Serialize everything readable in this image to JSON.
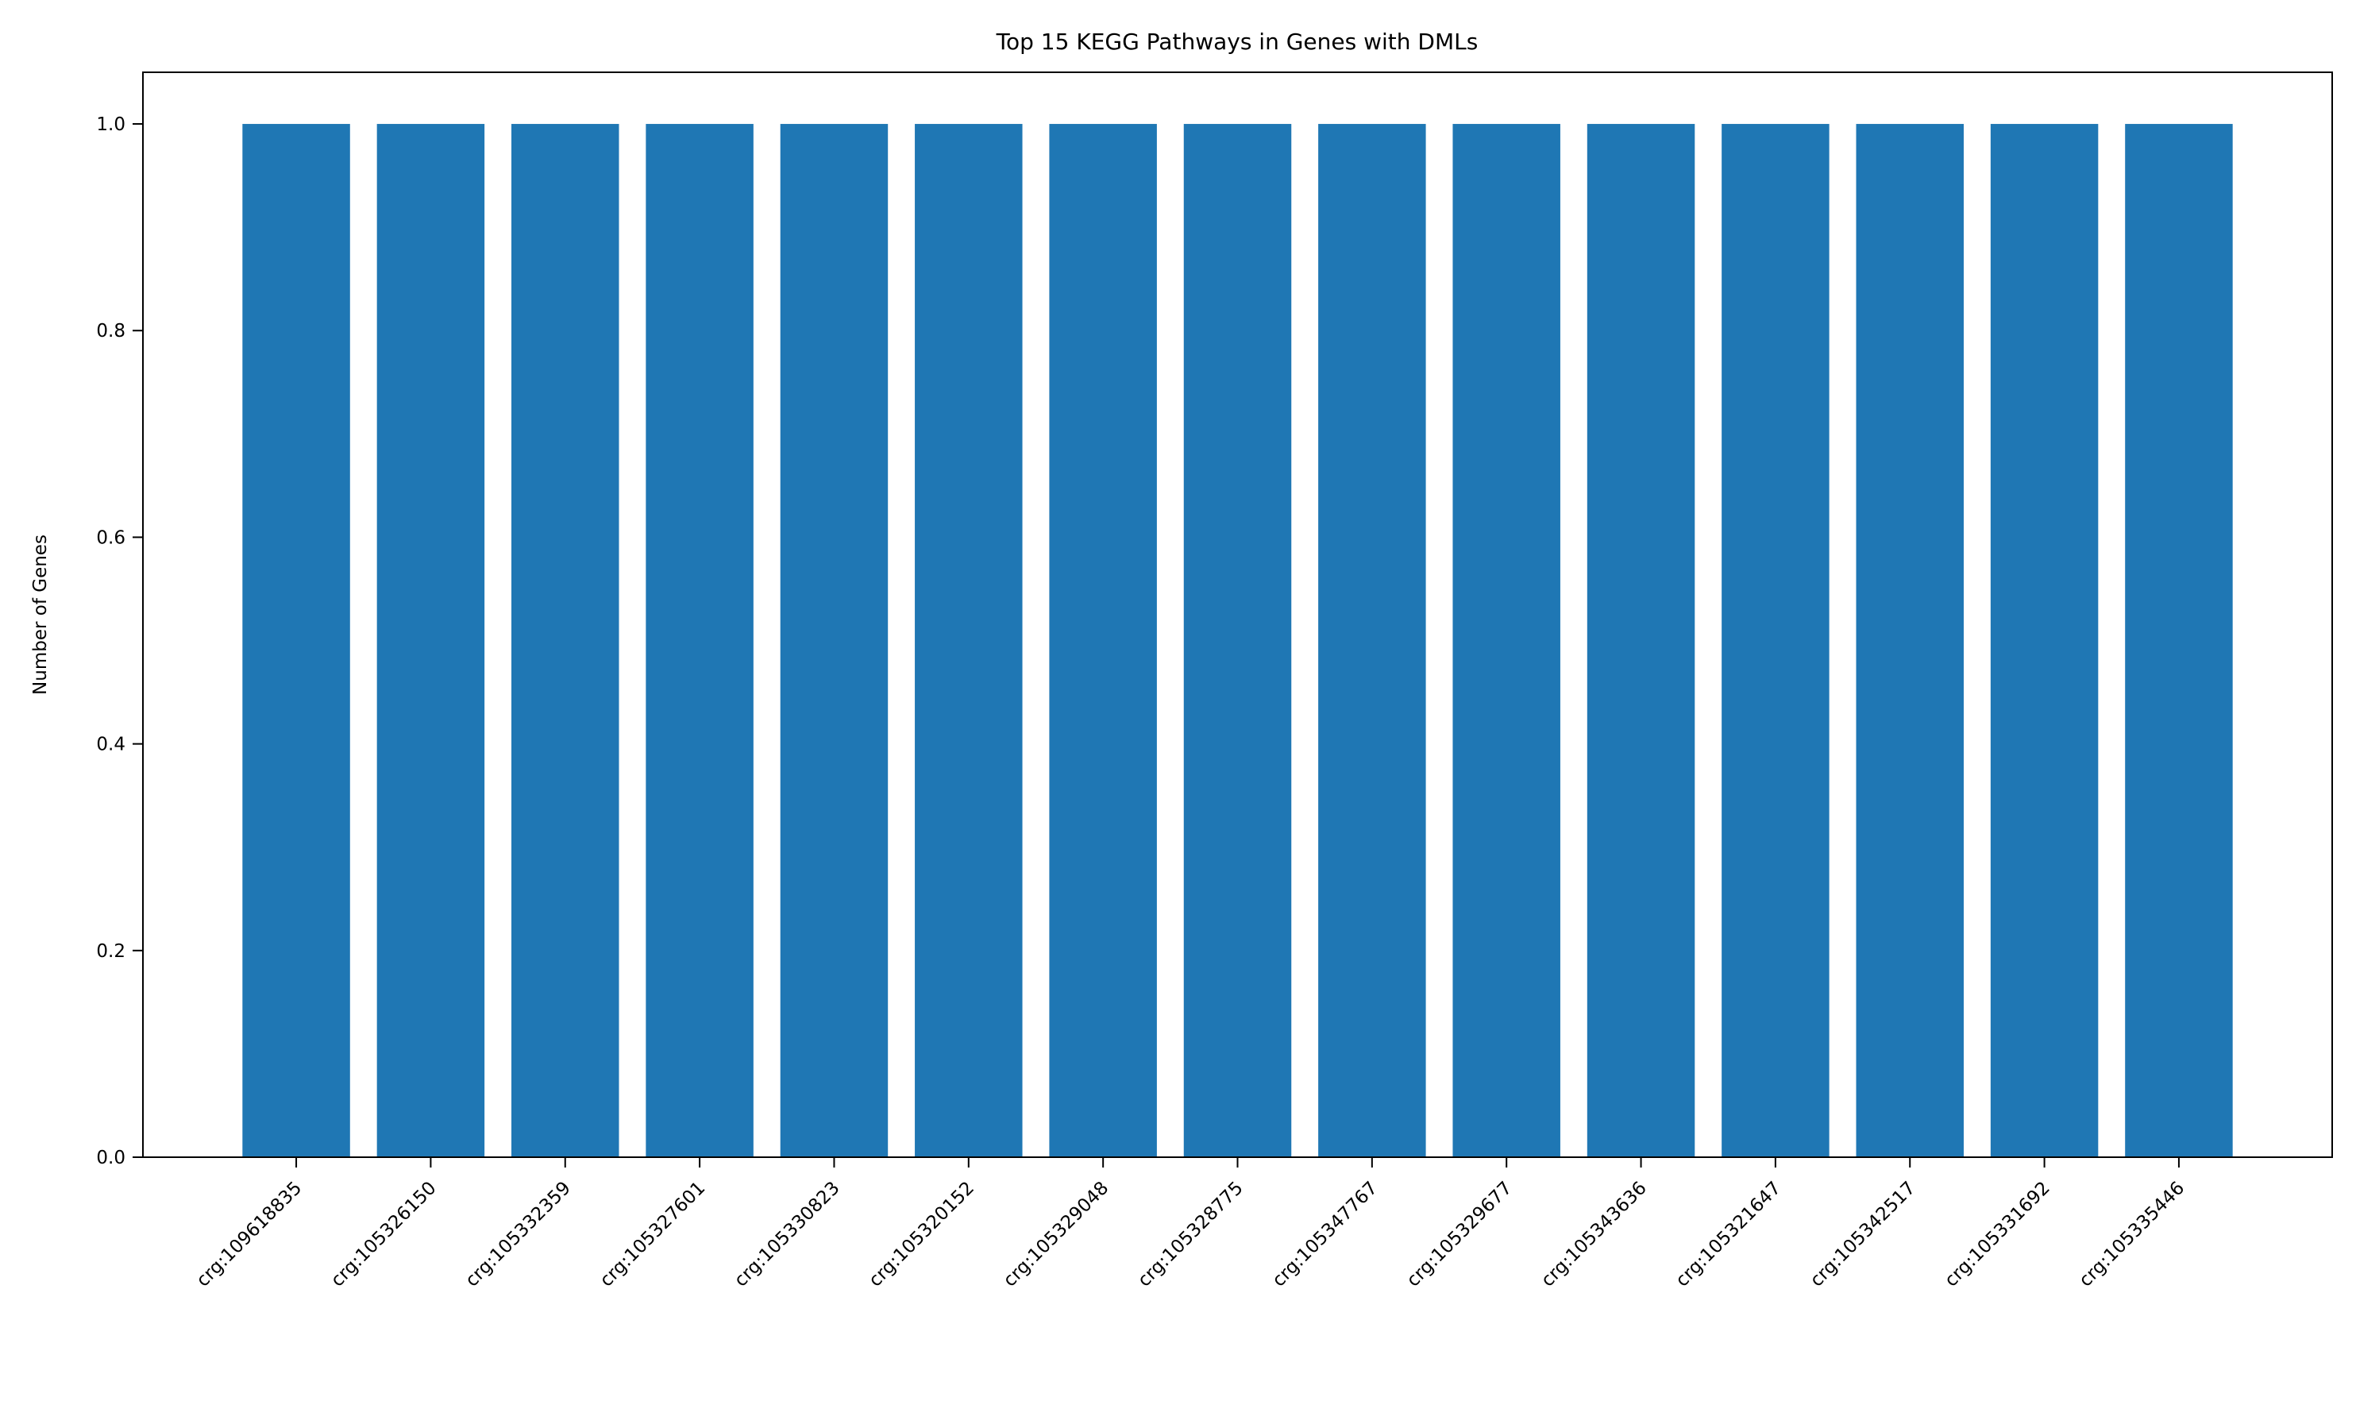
{
  "chart_data": {
    "type": "bar",
    "title": "Top 15 KEGG Pathways in Genes with DMLs",
    "xlabel": "",
    "ylabel": "Number of Genes",
    "categories": [
      "crg:109618835",
      "crg:105326150",
      "crg:105332359",
      "crg:105327601",
      "crg:105330823",
      "crg:105320152",
      "crg:105329048",
      "crg:105328775",
      "crg:105347767",
      "crg:105329677",
      "crg:105343636",
      "crg:105321647",
      "crg:105342517",
      "crg:105331692",
      "crg:105335446"
    ],
    "values": [
      1,
      1,
      1,
      1,
      1,
      1,
      1,
      1,
      1,
      1,
      1,
      1,
      1,
      1,
      1
    ],
    "ylim": [
      0,
      1.05
    ],
    "yticks": [
      "0.0",
      "0.2",
      "0.4",
      "0.6",
      "0.8",
      "1.0"
    ],
    "grid": false,
    "colors": {
      "bar": "#1f77b4"
    }
  }
}
